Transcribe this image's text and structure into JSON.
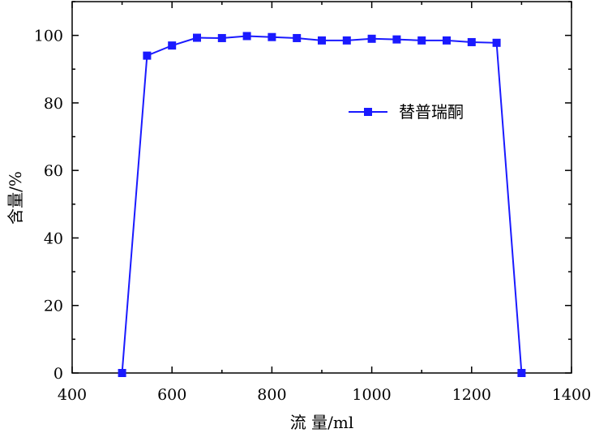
{
  "chart_data": {
    "type": "line",
    "xlabel": "流 量/ml",
    "ylabel": "含量/%",
    "xlim": [
      400,
      1400
    ],
    "ylim": [
      0,
      110
    ],
    "x_ticks": [
      "400",
      "600",
      "800",
      "1000",
      "1200",
      "1400"
    ],
    "y_ticks": [
      "0",
      "20",
      "40",
      "60",
      "80",
      "100"
    ],
    "legend_position": "upper-right",
    "grid": false,
    "series": [
      {
        "name": "替普瑞酮",
        "color": "#1a1aff",
        "marker": "square",
        "x": [
          500,
          550,
          600,
          650,
          700,
          750,
          800,
          850,
          900,
          950,
          1000,
          1050,
          1100,
          1150,
          1200,
          1250,
          1300
        ],
        "y": [
          0,
          94,
          97,
          99.3,
          99.2,
          99.8,
          99.5,
          99.2,
          98.5,
          98.5,
          99,
          98.8,
          98.5,
          98.5,
          98,
          97.8,
          0
        ]
      }
    ]
  }
}
